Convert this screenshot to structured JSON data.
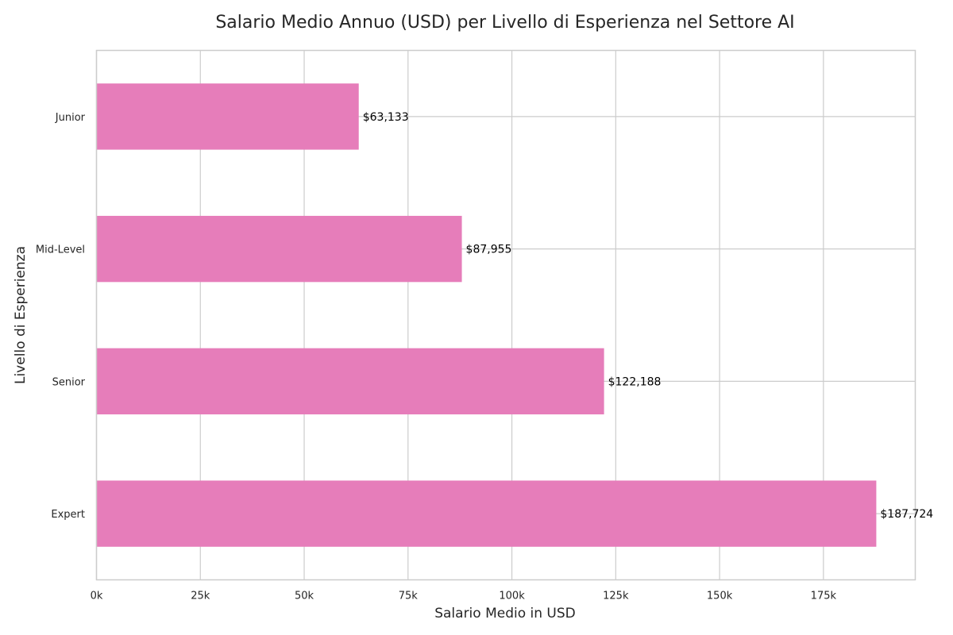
{
  "chart_data": {
    "type": "bar",
    "orientation": "horizontal",
    "title": "Salario Medio Annuo (USD) per Livello di Esperienza nel Settore AI",
    "xlabel": "Salario Medio in USD",
    "ylabel": "Livello di Esperienza",
    "categories": [
      "Junior",
      "Mid-Level",
      "Senior",
      "Expert"
    ],
    "values": [
      63133,
      87955,
      122188,
      187724
    ],
    "value_labels": [
      "$63,133",
      "$87,955",
      "$122,188",
      "$187,724"
    ],
    "xlim": [
      0,
      197110
    ],
    "xticks": [
      0,
      25000,
      50000,
      75000,
      100000,
      125000,
      150000,
      175000
    ],
    "xtick_labels": [
      "0k",
      "25k",
      "50k",
      "75k",
      "100k",
      "125k",
      "150k",
      "175k"
    ],
    "grid": true,
    "bar_color": "#e67dba",
    "grid_color": "#cccccc",
    "frame_color": "#cccccc"
  }
}
